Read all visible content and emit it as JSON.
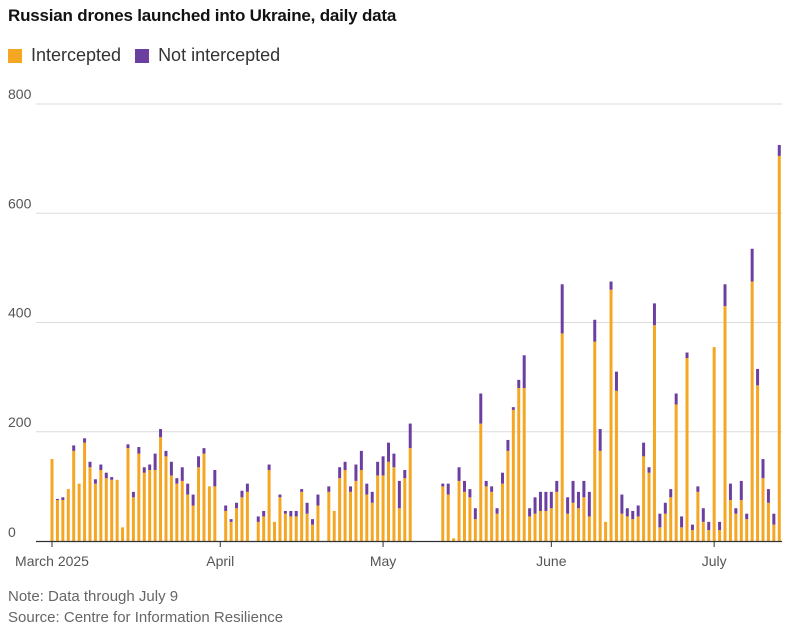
{
  "chart_data": {
    "type": "bar",
    "stacked": true,
    "title": "Russian drones launched into Ukraine, daily data",
    "legend": [
      {
        "name": "Intercepted",
        "color": "#f5a623"
      },
      {
        "name": "Not intercepted",
        "color": "#6b3fa0"
      }
    ],
    "ylim": [
      0,
      800
    ],
    "yticks": [
      "800",
      "600",
      "400",
      "200",
      "0"
    ],
    "ytick_values": [
      800,
      600,
      400,
      200,
      0
    ],
    "xticks": [
      {
        "label": "March 2025",
        "index": 0
      },
      {
        "label": "April",
        "index": 31
      },
      {
        "label": "May",
        "index": 61
      },
      {
        "label": "June",
        "index": 92
      },
      {
        "label": "July",
        "index": 122
      }
    ],
    "grid": true,
    "legend_position": "top-left",
    "start_date": "2025-03-01",
    "series": [
      {
        "name": "Intercepted",
        "color": "#f5a623",
        "values": [
          150,
          75,
          75,
          95,
          165,
          105,
          180,
          135,
          105,
          130,
          115,
          112,
          112,
          25,
          170,
          80,
          160,
          125,
          130,
          130,
          190,
          155,
          120,
          105,
          110,
          85,
          65,
          135,
          160,
          100,
          100,
          0,
          55,
          35,
          60,
          80,
          90,
          0,
          35,
          45,
          130,
          35,
          80,
          50,
          45,
          45,
          90,
          50,
          30,
          65,
          0,
          90,
          55,
          115,
          130,
          90,
          110,
          130,
          85,
          70,
          120,
          120,
          145,
          135,
          60,
          115,
          170,
          0,
          0,
          0,
          0,
          0,
          100,
          85,
          5,
          110,
          90,
          80,
          40,
          215,
          100,
          90,
          50,
          105,
          165,
          240,
          280,
          280,
          45,
          50,
          55,
          55,
          60,
          90,
          380,
          50,
          70,
          60,
          80,
          45,
          365,
          165,
          35,
          460,
          275,
          50,
          45,
          40,
          45,
          155,
          125,
          395,
          25,
          50,
          80,
          250,
          25,
          335,
          20,
          90,
          35,
          20,
          355,
          20,
          430,
          75,
          50,
          75,
          40,
          475,
          285,
          115,
          70,
          30,
          705
        ]
      },
      {
        "name": "Not intercepted",
        "color": "#6b3fa0",
        "values": [
          0,
          2,
          5,
          0,
          10,
          0,
          8,
          10,
          8,
          10,
          10,
          5,
          0,
          0,
          7,
          10,
          12,
          10,
          10,
          30,
          15,
          10,
          25,
          10,
          25,
          20,
          20,
          20,
          10,
          0,
          30,
          0,
          10,
          5,
          10,
          12,
          15,
          0,
          10,
          10,
          10,
          0,
          5,
          5,
          10,
          10,
          5,
          20,
          10,
          20,
          0,
          10,
          0,
          20,
          15,
          10,
          30,
          35,
          20,
          20,
          25,
          35,
          35,
          25,
          50,
          15,
          45,
          0,
          0,
          0,
          0,
          0,
          5,
          20,
          0,
          25,
          20,
          15,
          20,
          55,
          10,
          10,
          10,
          20,
          20,
          5,
          15,
          60,
          15,
          30,
          35,
          35,
          30,
          20,
          90,
          30,
          40,
          30,
          30,
          45,
          40,
          40,
          0,
          15,
          35,
          35,
          15,
          15,
          20,
          25,
          10,
          40,
          25,
          20,
          15,
          20,
          20,
          10,
          10,
          10,
          25,
          15,
          0,
          15,
          40,
          30,
          10,
          35,
          10,
          60,
          30,
          35,
          25,
          20,
          20
        ]
      }
    ]
  },
  "footer": {
    "note": "Note: Data through July 9",
    "source": "Source: Centre for Information Resilience"
  }
}
